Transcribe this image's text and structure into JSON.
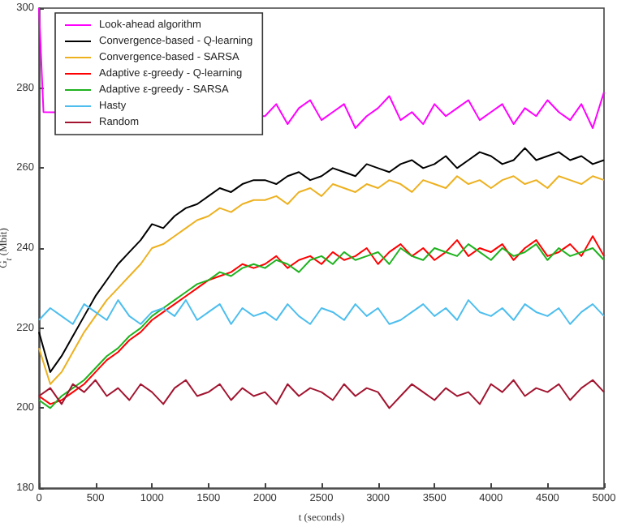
{
  "chart_data": {
    "type": "line",
    "xlabel": "t (seconds)",
    "ylabel": "G$_{t}$ (Mbit)",
    "x": [
      0,
      100,
      200,
      300,
      400,
      500,
      600,
      700,
      800,
      900,
      1000,
      1100,
      1200,
      1300,
      1400,
      1500,
      1600,
      1700,
      1800,
      1900,
      2000,
      2100,
      2200,
      2300,
      2400,
      2500,
      2600,
      2700,
      2800,
      2900,
      3000,
      3100,
      3200,
      3300,
      3400,
      3500,
      3600,
      3700,
      3800,
      3900,
      4000,
      4100,
      4200,
      4300,
      4400,
      4500,
      4600,
      4700,
      4800,
      4900,
      5000
    ],
    "series": [
      {
        "name": "Look-ahead algorithm",
        "color": "#ff00ff",
        "x": [
          0,
          40,
          2000,
          2100,
          2200,
          2300,
          2400,
          2500,
          2600,
          2700,
          2800,
          2900,
          3000,
          3100,
          3200,
          3300,
          3400,
          3500,
          3600,
          3700,
          3800,
          3900,
          4000,
          4100,
          4200,
          4300,
          4400,
          4500,
          4600,
          4700,
          4800,
          4900,
          5000
        ],
        "values": [
          300,
          274,
          273,
          276,
          271,
          275,
          277,
          272,
          274,
          276,
          270,
          273,
          275,
          278,
          272,
          274,
          271,
          276,
          273,
          275,
          277,
          272,
          274,
          276,
          271,
          275,
          273,
          277,
          274,
          272,
          276,
          270,
          279
        ]
      },
      {
        "name": "Convergence-based - Q-learning",
        "color": "#000000",
        "values": [
          219,
          209,
          213,
          218,
          223,
          228,
          232,
          236,
          239,
          242,
          246,
          245,
          248,
          250,
          251,
          253,
          255,
          254,
          256,
          257,
          257,
          256,
          258,
          259,
          257,
          258,
          260,
          259,
          258,
          261,
          260,
          259,
          261,
          262,
          260,
          261,
          263,
          260,
          262,
          264,
          263,
          261,
          262,
          265,
          262,
          263,
          264,
          262,
          263,
          261,
          262
        ]
      },
      {
        "name": "Convergence-based - SARSA",
        "color": "#edb120",
        "values": [
          215,
          206,
          209,
          214,
          219,
          223,
          227,
          230,
          233,
          236,
          240,
          241,
          243,
          245,
          247,
          248,
          250,
          249,
          251,
          252,
          252,
          253,
          251,
          254,
          255,
          253,
          256,
          255,
          254,
          256,
          255,
          257,
          256,
          254,
          257,
          256,
          255,
          258,
          256,
          257,
          255,
          257,
          258,
          256,
          257,
          255,
          258,
          257,
          256,
          258,
          257
        ]
      },
      {
        "name": "Adaptive ε-greedy - Q-learning",
        "color": "#ff0000",
        "values": [
          203,
          201,
          202,
          204,
          206,
          209,
          212,
          214,
          217,
          219,
          222,
          224,
          226,
          228,
          230,
          232,
          233,
          234,
          236,
          235,
          236,
          238,
          235,
          237,
          238,
          236,
          239,
          237,
          238,
          240,
          236,
          239,
          241,
          238,
          240,
          237,
          239,
          242,
          238,
          240,
          239,
          241,
          237,
          240,
          242,
          238,
          239,
          241,
          238,
          243,
          238
        ]
      },
      {
        "name": "Adaptive ε-greedy - SARSA",
        "color": "#1fb31f",
        "values": [
          202,
          200,
          203,
          205,
          207,
          210,
          213,
          215,
          218,
          220,
          223,
          225,
          227,
          229,
          231,
          232,
          234,
          233,
          235,
          236,
          235,
          237,
          236,
          234,
          237,
          238,
          236,
          239,
          237,
          238,
          239,
          236,
          240,
          238,
          237,
          240,
          239,
          238,
          241,
          239,
          237,
          240,
          238,
          239,
          241,
          237,
          240,
          238,
          239,
          240,
          237
        ]
      },
      {
        "name": "Hasty",
        "color": "#4dbeee",
        "values": [
          222,
          225,
          223,
          221,
          226,
          224,
          222,
          227,
          223,
          221,
          224,
          225,
          223,
          227,
          222,
          224,
          226,
          221,
          225,
          223,
          224,
          222,
          226,
          223,
          221,
          225,
          224,
          222,
          226,
          223,
          225,
          221,
          222,
          224,
          226,
          223,
          225,
          222,
          227,
          224,
          223,
          225,
          222,
          226,
          224,
          223,
          225,
          221,
          224,
          226,
          223
        ]
      },
      {
        "name": "Random",
        "color": "#a2142f",
        "values": [
          203,
          205,
          201,
          206,
          204,
          207,
          203,
          205,
          202,
          206,
          204,
          201,
          205,
          207,
          203,
          204,
          206,
          202,
          205,
          203,
          204,
          201,
          206,
          203,
          205,
          204,
          202,
          206,
          203,
          205,
          204,
          200,
          203,
          206,
          204,
          202,
          205,
          203,
          204,
          201,
          206,
          204,
          207,
          203,
          205,
          204,
          206,
          202,
          205,
          207,
          204
        ]
      }
    ],
    "xlim": [
      0,
      5000
    ],
    "xticks": [
      0,
      500,
      1000,
      1500,
      2000,
      2500,
      3000,
      3500,
      4000,
      4500,
      5000
    ],
    "ylim": [
      180,
      300
    ],
    "yticks": [
      180,
      200,
      220,
      240,
      260,
      280,
      300
    ],
    "legend": "top left",
    "grid": false,
    "marker": "none",
    "line_style": "solid"
  }
}
